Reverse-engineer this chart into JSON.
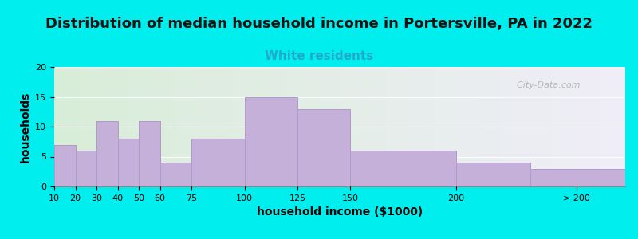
{
  "title": "Distribution of median household income in Portersville, PA in 2022",
  "subtitle": "White residents",
  "xlabel": "household income ($1000)",
  "ylabel": "households",
  "background_outer": "#00EEEE",
  "background_inner_left": "#d8edd8",
  "background_inner_right": "#f0eef8",
  "bar_color": "#c4b0d8",
  "bar_edge_color": "#b09ac8",
  "categories": [
    "10",
    "20",
    "30",
    "40",
    "50",
    "60",
    "75",
    "100",
    "125",
    "150",
    "200",
    "> 200"
  ],
  "values": [
    7,
    6,
    11,
    8,
    11,
    4,
    8,
    15,
    13,
    6,
    4,
    3
  ],
  "ylim": [
    0,
    20
  ],
  "yticks": [
    0,
    5,
    10,
    15,
    20
  ],
  "title_fontsize": 13,
  "subtitle_fontsize": 11,
  "subtitle_color": "#22AACC",
  "axis_label_fontsize": 10,
  "tick_fontsize": 8,
  "watermark": "  City-Data.com",
  "x_positions": [
    10,
    20,
    30,
    40,
    50,
    60,
    75,
    100,
    125,
    150,
    200,
    235
  ],
  "widths": [
    10,
    10,
    10,
    10,
    10,
    15,
    25,
    25,
    25,
    50,
    35,
    45
  ],
  "xlim_left": 10,
  "xlim_right": 280
}
